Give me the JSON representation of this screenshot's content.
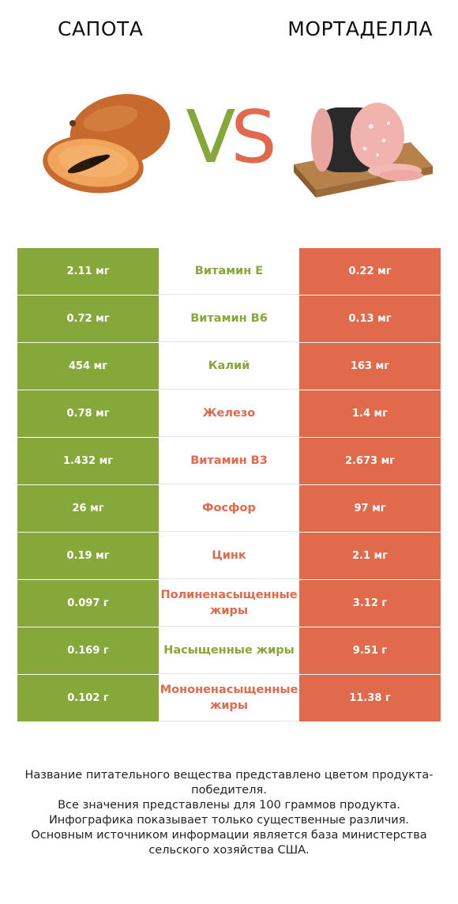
{
  "header": {
    "left_title": "САПОТА",
    "right_title": "МОРТАДЕЛЛА",
    "vs_v": "V",
    "vs_s": "S"
  },
  "colors": {
    "left": "#86a83a",
    "right": "#e06a4b"
  },
  "rows": [
    {
      "left": "2.11 мг",
      "nutrient": "Витамин E",
      "right": "0.22 мг",
      "winner": "left"
    },
    {
      "left": "0.72 мг",
      "nutrient": "Витамин B6",
      "right": "0.13 мг",
      "winner": "left"
    },
    {
      "left": "454 мг",
      "nutrient": "Калий",
      "right": "163 мг",
      "winner": "left"
    },
    {
      "left": "0.78 мг",
      "nutrient": "Железо",
      "right": "1.4 мг",
      "winner": "right"
    },
    {
      "left": "1.432 мг",
      "nutrient": "Витамин B3",
      "right": "2.673 мг",
      "winner": "right"
    },
    {
      "left": "26 мг",
      "nutrient": "Фосфор",
      "right": "97 мг",
      "winner": "right"
    },
    {
      "left": "0.19 мг",
      "nutrient": "Цинк",
      "right": "2.1 мг",
      "winner": "right"
    },
    {
      "left": "0.097 г",
      "nutrient": "Полиненасыщенные жиры",
      "right": "3.12 г",
      "winner": "right"
    },
    {
      "left": "0.169 г",
      "nutrient": "Насыщенные жиры",
      "right": "9.51 г",
      "winner": "left"
    },
    {
      "left": "0.102 г",
      "nutrient": "Мононенасыщенные жиры",
      "right": "11.38 г",
      "winner": "right"
    }
  ],
  "footer": {
    "line1": "Название питательного вещества представлено цветом продукта-победителя.",
    "line2": "Все значения представлены для 100 граммов продукта.",
    "line3": "Инфографика показывает только существенные различия.",
    "line4": "Основным источником информации является база министерства сельского хозяйства США."
  }
}
